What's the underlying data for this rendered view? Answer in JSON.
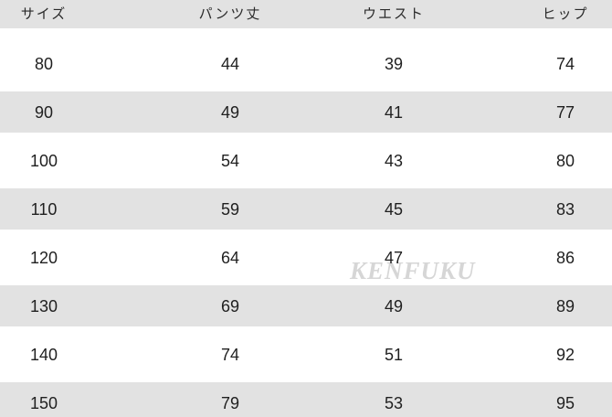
{
  "chart_data": {
    "type": "table",
    "columns": [
      "サイズ",
      "パンツ丈",
      "ウエスト",
      "ヒップ"
    ],
    "rows": [
      [
        "80",
        "44",
        "39",
        "74"
      ],
      [
        "90",
        "49",
        "41",
        "77"
      ],
      [
        "100",
        "54",
        "43",
        "80"
      ],
      [
        "110",
        "59",
        "45",
        "83"
      ],
      [
        "120",
        "64",
        "47",
        "86"
      ],
      [
        "130",
        "69",
        "49",
        "89"
      ],
      [
        "140",
        "74",
        "51",
        "92"
      ],
      [
        "150",
        "79",
        "53",
        "95"
      ]
    ],
    "layout": {
      "striped": true,
      "stripe_rows": [
        1,
        3,
        5,
        7
      ],
      "header_background": "#e2e2e2"
    }
  },
  "watermark": {
    "text": "KENFUKU"
  },
  "colors": {
    "stripe": "#e2e2e2",
    "text": "#1f1f1f",
    "background": "#ffffff",
    "watermark": "#d6d6d6"
  }
}
